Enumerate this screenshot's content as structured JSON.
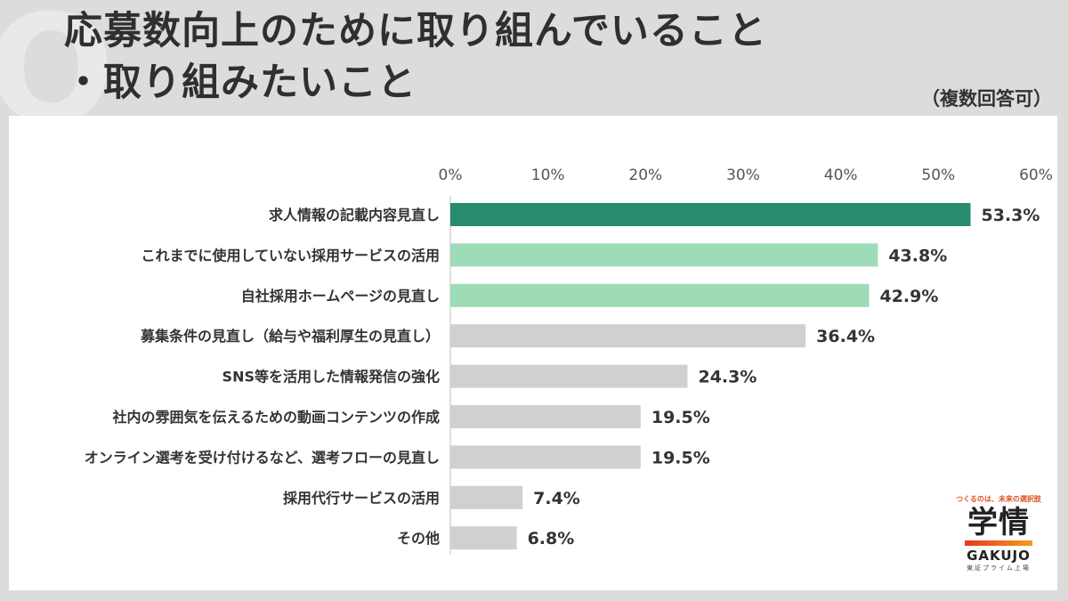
{
  "title": {
    "line1": "応募数向上のために取り組んでいること",
    "line2": "・取り組みたいこと",
    "mark": "Q"
  },
  "note": "（複数回答可）",
  "logo": {
    "tagline": "つくるのは、未来の選択肢",
    "mark": "学情",
    "name": "GAKUJO",
    "sub": "東証プライム上場"
  },
  "colors": {
    "highlight_dark": "#278b6e",
    "highlight_light": "#9ddcb6",
    "neutral": "#d2cfcf"
  },
  "chart_data": {
    "type": "bar",
    "orientation": "horizontal",
    "xlim": [
      0,
      60
    ],
    "ticks": [
      "0%",
      "10%",
      "20%",
      "30%",
      "40%",
      "50%",
      "60%"
    ],
    "categories": [
      "求人情報の記載内容見直し",
      "これまでに使用していない採用サービスの活用",
      "自社採用ホームページの見直し",
      "募集条件の見直し（給与や福利厚生の見直し）",
      "SNS等を活用した情報発信の強化",
      "社内の雰囲気を伝えるための動画コンテンツの作成",
      "オンライン選考を受け付けるなど、選考フローの見直し",
      "採用代行サービスの活用",
      "その他"
    ],
    "values": [
      53.3,
      43.8,
      42.9,
      36.4,
      24.3,
      19.5,
      19.5,
      7.4,
      6.8
    ],
    "value_labels": [
      "53.3%",
      "43.8%",
      "42.9%",
      "36.4%",
      "24.3%",
      "19.5%",
      "19.5%",
      "7.4%",
      "6.8%"
    ],
    "bar_colors": [
      "highlight_dark",
      "highlight_light",
      "highlight_light",
      "neutral",
      "neutral",
      "neutral",
      "neutral",
      "neutral",
      "neutral"
    ]
  }
}
